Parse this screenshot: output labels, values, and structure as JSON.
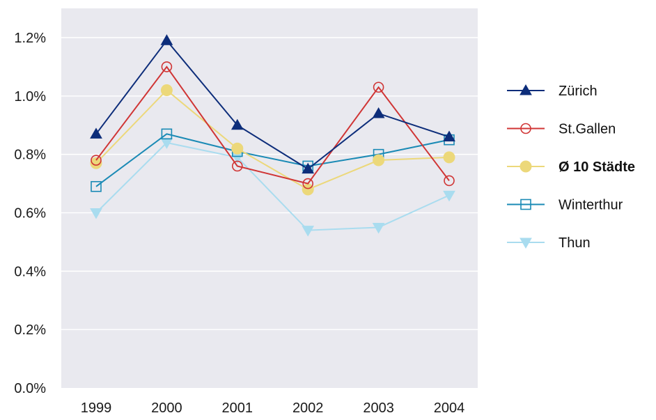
{
  "chart_data": {
    "type": "line",
    "title": "",
    "xlabel": "",
    "ylabel": "",
    "categories": [
      "1999",
      "2000",
      "2001",
      "2002",
      "2003",
      "2004"
    ],
    "ylim": [
      0,
      1.2
    ],
    "yticks": [
      0.0,
      0.2,
      0.4,
      0.6,
      0.8,
      1.0,
      1.2
    ],
    "ytick_labels": [
      "0.0%",
      "0.2%",
      "0.4%",
      "0.6%",
      "0.8%",
      "1.0%",
      "1.2%"
    ],
    "grid": "horizontal",
    "legend_position": "right",
    "series": [
      {
        "name": "Zürich",
        "color": "#0d2d7a",
        "marker": "triangle-up-filled",
        "bold": false,
        "values": [
          0.87,
          1.19,
          0.9,
          0.75,
          0.94,
          0.86
        ]
      },
      {
        "name": "St.Gallen",
        "color": "#d03535",
        "marker": "circle-open",
        "bold": false,
        "values": [
          0.78,
          1.1,
          0.76,
          0.7,
          1.03,
          0.71
        ]
      },
      {
        "name": "Ø 10 Städte",
        "color": "#ecd87a",
        "marker": "circle-filled",
        "bold": true,
        "values": [
          0.77,
          1.02,
          0.82,
          0.68,
          0.78,
          0.79
        ]
      },
      {
        "name": "Winterthur",
        "color": "#1a8ab5",
        "marker": "square-open",
        "bold": false,
        "values": [
          0.69,
          0.87,
          0.81,
          0.76,
          0.8,
          0.85
        ]
      },
      {
        "name": "Thun",
        "color": "#a9dcef",
        "marker": "triangle-down-filled",
        "bold": false,
        "values": [
          0.6,
          0.84,
          0.79,
          0.54,
          0.55,
          0.66
        ]
      }
    ]
  }
}
